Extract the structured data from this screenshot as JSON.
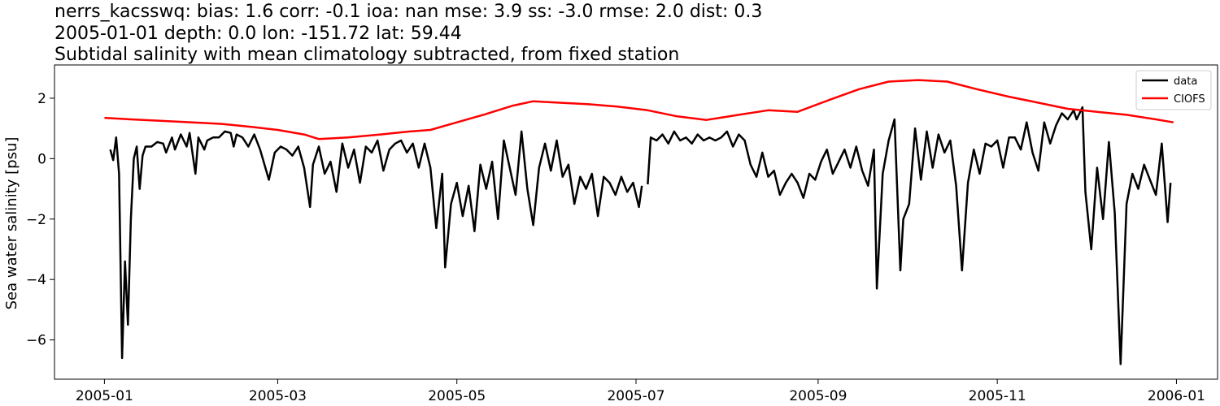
{
  "chart_data": {
    "type": "line",
    "title_lines": [
      "nerrs_kacsswq: bias: 1.6  corr: -0.1  ioa: nan  mse: 3.9  ss: -3.0  rmse: 2.0  dist: 0.3",
      "2005-01-01 depth: 0.0 lon: -151.72 lat: 59.44",
      "Subtidal salinity with mean climatology subtracted, from fixed station"
    ],
    "xlabel": "",
    "ylabel": "Sea water salinity [psu]",
    "xlim": [
      "2004-12-15",
      "2006-01-15"
    ],
    "ylim": [
      -7.3,
      3.1
    ],
    "x_ticks": [
      "2005-01",
      "2005-03",
      "2005-05",
      "2005-07",
      "2005-09",
      "2005-11",
      "2006-01"
    ],
    "y_ticks": [
      -6,
      -4,
      -2,
      0,
      2
    ],
    "y_tick_labels": [
      "−6",
      "−4",
      "−2",
      "0",
      "2"
    ],
    "grid": false,
    "legend_position": "top-right",
    "series": [
      {
        "name": "data",
        "color": "#000000",
        "points": [
          [
            "2005-01-03",
            0.3
          ],
          [
            "2005-01-04",
            -0.05
          ],
          [
            "2005-01-05",
            0.7
          ],
          [
            "2005-01-06",
            -0.5
          ],
          [
            "2005-01-07",
            -6.6
          ],
          [
            "2005-01-08",
            -3.4
          ],
          [
            "2005-01-09",
            -5.5
          ],
          [
            "2005-01-10",
            -2.0
          ],
          [
            "2005-01-11",
            0.0
          ],
          [
            "2005-01-12",
            0.4
          ],
          [
            "2005-01-13",
            -1.0
          ],
          [
            "2005-01-14",
            0.1
          ],
          [
            "2005-01-15",
            0.4
          ],
          [
            "2005-01-17",
            0.4
          ],
          [
            "2005-01-19",
            0.55
          ],
          [
            "2005-01-21",
            0.5
          ],
          [
            "2005-01-22",
            0.2
          ],
          [
            "2005-01-24",
            0.7
          ],
          [
            "2005-01-25",
            0.3
          ],
          [
            "2005-01-27",
            0.8
          ],
          [
            "2005-01-29",
            0.4
          ],
          [
            "2005-01-30",
            0.85
          ],
          [
            "2005-02-01",
            -0.5
          ],
          [
            "2005-02-02",
            0.7
          ],
          [
            "2005-02-04",
            0.3
          ],
          [
            "2005-02-05",
            0.6
          ],
          [
            "2005-02-07",
            0.7
          ],
          [
            "2005-02-09",
            0.7
          ],
          [
            "2005-02-11",
            0.9
          ],
          [
            "2005-02-13",
            0.85
          ],
          [
            "2005-02-14",
            0.4
          ],
          [
            "2005-02-15",
            0.8
          ],
          [
            "2005-02-17",
            0.7
          ],
          [
            "2005-02-19",
            0.4
          ],
          [
            "2005-02-21",
            0.8
          ],
          [
            "2005-02-23",
            0.3
          ],
          [
            "2005-02-26",
            -0.7
          ],
          [
            "2005-02-28",
            0.2
          ],
          [
            "2005-03-02",
            0.4
          ],
          [
            "2005-03-04",
            0.3
          ],
          [
            "2005-03-06",
            0.1
          ],
          [
            "2005-03-08",
            0.4
          ],
          [
            "2005-03-10",
            -0.3
          ],
          [
            "2005-03-12",
            -1.6
          ],
          [
            "2005-03-13",
            -0.2
          ],
          [
            "2005-03-15",
            0.4
          ],
          [
            "2005-03-17",
            -0.5
          ],
          [
            "2005-03-19",
            -0.1
          ],
          [
            "2005-03-21",
            -1.1
          ],
          [
            "2005-03-23",
            0.5
          ],
          [
            "2005-03-25",
            -0.3
          ],
          [
            "2005-03-27",
            0.3
          ],
          [
            "2005-03-29",
            -0.8
          ],
          [
            "2005-03-31",
            0.4
          ],
          [
            "2005-04-02",
            0.2
          ],
          [
            "2005-04-04",
            0.6
          ],
          [
            "2005-04-06",
            -0.4
          ],
          [
            "2005-04-08",
            0.3
          ],
          [
            "2005-04-10",
            0.5
          ],
          [
            "2005-04-12",
            0.6
          ],
          [
            "2005-04-14",
            0.2
          ],
          [
            "2005-04-16",
            0.5
          ],
          [
            "2005-04-18",
            -0.3
          ],
          [
            "2005-04-20",
            0.5
          ],
          [
            "2005-04-22",
            -0.3
          ],
          [
            "2005-04-24",
            -2.3
          ],
          [
            "2005-04-26",
            -0.5
          ],
          [
            "2005-04-27",
            -3.6
          ],
          [
            "2005-04-29",
            -1.5
          ],
          [
            "2005-05-01",
            -0.8
          ],
          [
            "2005-05-03",
            -1.9
          ],
          [
            "2005-05-05",
            -0.9
          ],
          [
            "2005-05-07",
            -2.4
          ],
          [
            "2005-05-09",
            -0.2
          ],
          [
            "2005-05-11",
            -1.0
          ],
          [
            "2005-05-13",
            -0.1
          ],
          [
            "2005-05-15",
            -2.0
          ],
          [
            "2005-05-17",
            0.6
          ],
          [
            "2005-05-19",
            -0.3
          ],
          [
            "2005-05-21",
            -1.2
          ],
          [
            "2005-05-23",
            0.9
          ],
          [
            "2005-05-25",
            -1.0
          ],
          [
            "2005-05-27",
            -2.2
          ],
          [
            "2005-05-29",
            -0.3
          ],
          [
            "2005-05-31",
            0.5
          ],
          [
            "2005-06-02",
            -0.4
          ],
          [
            "2005-06-04",
            0.6
          ],
          [
            "2005-06-06",
            -0.6
          ],
          [
            "2005-06-08",
            -0.2
          ],
          [
            "2005-06-10",
            -1.5
          ],
          [
            "2005-06-12",
            -0.6
          ],
          [
            "2005-06-14",
            -1.0
          ],
          [
            "2005-06-16",
            -0.5
          ],
          [
            "2005-06-18",
            -1.9
          ],
          [
            "2005-06-20",
            -0.6
          ],
          [
            "2005-06-22",
            -0.8
          ],
          [
            "2005-06-24",
            -1.2
          ],
          [
            "2005-06-26",
            -0.6
          ],
          [
            "2005-06-28",
            -1.1
          ],
          [
            "2005-06-30",
            -0.8
          ],
          [
            "2005-07-02",
            -1.6
          ],
          [
            "2005-07-03",
            -0.9
          ],
          [
            null,
            null
          ],
          [
            "2005-07-05",
            -0.85
          ],
          [
            "2005-07-06",
            0.7
          ],
          [
            "2005-07-08",
            0.6
          ],
          [
            "2005-07-10",
            0.8
          ],
          [
            "2005-07-12",
            0.5
          ],
          [
            "2005-07-14",
            0.9
          ],
          [
            "2005-07-16",
            0.6
          ],
          [
            "2005-07-18",
            0.7
          ],
          [
            "2005-07-20",
            0.5
          ],
          [
            "2005-07-22",
            0.8
          ],
          [
            "2005-07-24",
            0.6
          ],
          [
            "2005-07-26",
            0.7
          ],
          [
            "2005-07-28",
            0.6
          ],
          [
            "2005-07-30",
            0.7
          ],
          [
            "2005-08-01",
            0.9
          ],
          [
            "2005-08-03",
            0.4
          ],
          [
            "2005-08-05",
            0.8
          ],
          [
            "2005-08-07",
            0.6
          ],
          [
            "2005-08-09",
            -0.2
          ],
          [
            "2005-08-11",
            -0.6
          ],
          [
            "2005-08-13",
            0.2
          ],
          [
            "2005-08-15",
            -0.6
          ],
          [
            "2005-08-17",
            -0.4
          ],
          [
            "2005-08-19",
            -1.2
          ],
          [
            "2005-08-21",
            -0.8
          ],
          [
            "2005-08-23",
            -0.5
          ],
          [
            "2005-08-25",
            -0.8
          ],
          [
            "2005-08-27",
            -1.3
          ],
          [
            "2005-08-29",
            -0.5
          ],
          [
            "2005-08-31",
            -0.7
          ],
          [
            "2005-09-02",
            -0.1
          ],
          [
            "2005-09-04",
            0.3
          ],
          [
            "2005-09-06",
            -0.5
          ],
          [
            "2005-09-08",
            -0.1
          ],
          [
            "2005-09-10",
            0.3
          ],
          [
            "2005-09-12",
            -0.3
          ],
          [
            "2005-09-14",
            0.4
          ],
          [
            "2005-09-16",
            -0.4
          ],
          [
            "2005-09-18",
            -0.9
          ],
          [
            "2005-09-20",
            0.3
          ],
          [
            "2005-09-21",
            -4.3
          ],
          [
            "2005-09-23",
            -0.5
          ],
          [
            "2005-09-25",
            0.6
          ],
          [
            "2005-09-27",
            1.3
          ],
          [
            "2005-09-29",
            -3.7
          ],
          [
            "2005-09-30",
            -2.0
          ],
          [
            "2005-10-02",
            -1.5
          ],
          [
            "2005-10-04",
            1.0
          ],
          [
            "2005-10-06",
            -0.7
          ],
          [
            "2005-10-08",
            0.9
          ],
          [
            "2005-10-10",
            -0.3
          ],
          [
            "2005-10-12",
            0.8
          ],
          [
            "2005-10-14",
            0.2
          ],
          [
            "2005-10-16",
            0.6
          ],
          [
            "2005-10-18",
            -0.9
          ],
          [
            "2005-10-20",
            -3.7
          ],
          [
            "2005-10-22",
            -0.8
          ],
          [
            "2005-10-24",
            0.3
          ],
          [
            "2005-10-26",
            -0.5
          ],
          [
            "2005-10-28",
            0.5
          ],
          [
            "2005-10-30",
            0.4
          ],
          [
            "2005-11-01",
            0.6
          ],
          [
            "2005-11-03",
            -0.3
          ],
          [
            "2005-11-05",
            0.7
          ],
          [
            "2005-11-07",
            0.7
          ],
          [
            "2005-11-09",
            0.3
          ],
          [
            "2005-11-11",
            1.2
          ],
          [
            "2005-11-13",
            0.2
          ],
          [
            "2005-11-15",
            -0.4
          ],
          [
            "2005-11-17",
            1.2
          ],
          [
            "2005-11-19",
            0.5
          ],
          [
            "2005-11-21",
            1.1
          ],
          [
            "2005-11-23",
            1.5
          ],
          [
            "2005-11-25",
            1.3
          ],
          [
            "2005-11-27",
            1.6
          ],
          [
            "2005-11-28",
            1.3
          ],
          [
            "2005-11-30",
            1.7
          ],
          [
            "2005-12-01",
            -1.1
          ],
          [
            "2005-12-03",
            -3.0
          ],
          [
            "2005-12-05",
            -0.3
          ],
          [
            "2005-12-07",
            -2.0
          ],
          [
            "2005-12-09",
            0.55
          ],
          [
            "2005-12-11",
            -1.8
          ],
          [
            "2005-12-13",
            -6.8
          ],
          [
            "2005-12-15",
            -1.5
          ],
          [
            "2005-12-17",
            -0.5
          ],
          [
            "2005-12-19",
            -1.0
          ],
          [
            "2005-12-21",
            -0.2
          ],
          [
            "2005-12-23",
            -0.7
          ],
          [
            "2005-12-25",
            -1.2
          ],
          [
            "2005-12-27",
            0.5
          ],
          [
            "2005-12-29",
            -2.1
          ],
          [
            "2005-12-30",
            -0.8
          ]
        ]
      },
      {
        "name": "CIOFS",
        "color": "#ff0000",
        "points": [
          [
            "2005-01-01",
            1.35
          ],
          [
            "2005-01-10",
            1.3
          ],
          [
            "2005-01-20",
            1.25
          ],
          [
            "2005-01-31",
            1.2
          ],
          [
            "2005-02-10",
            1.15
          ],
          [
            "2005-02-20",
            1.05
          ],
          [
            "2005-03-01",
            0.95
          ],
          [
            "2005-03-10",
            0.8
          ],
          [
            "2005-03-15",
            0.65
          ],
          [
            "2005-03-25",
            0.7
          ],
          [
            "2005-04-05",
            0.8
          ],
          [
            "2005-04-15",
            0.9
          ],
          [
            "2005-04-22",
            0.95
          ],
          [
            "2005-05-01",
            1.2
          ],
          [
            "2005-05-10",
            1.45
          ],
          [
            "2005-05-20",
            1.75
          ],
          [
            "2005-05-27",
            1.9
          ],
          [
            "2005-06-05",
            1.85
          ],
          [
            "2005-06-15",
            1.8
          ],
          [
            "2005-06-25",
            1.72
          ],
          [
            "2005-07-05",
            1.6
          ],
          [
            "2005-07-15",
            1.4
          ],
          [
            "2005-07-25",
            1.28
          ],
          [
            "2005-08-05",
            1.45
          ],
          [
            "2005-08-15",
            1.6
          ],
          [
            "2005-08-25",
            1.55
          ],
          [
            "2005-09-05",
            1.95
          ],
          [
            "2005-09-15",
            2.3
          ],
          [
            "2005-09-25",
            2.55
          ],
          [
            "2005-10-05",
            2.6
          ],
          [
            "2005-10-15",
            2.55
          ],
          [
            "2005-10-25",
            2.3
          ],
          [
            "2005-11-05",
            2.05
          ],
          [
            "2005-11-15",
            1.85
          ],
          [
            "2005-11-25",
            1.65
          ],
          [
            "2005-12-05",
            1.55
          ],
          [
            "2005-12-15",
            1.45
          ],
          [
            "2005-12-25",
            1.3
          ],
          [
            "2005-12-31",
            1.2
          ]
        ]
      }
    ]
  }
}
